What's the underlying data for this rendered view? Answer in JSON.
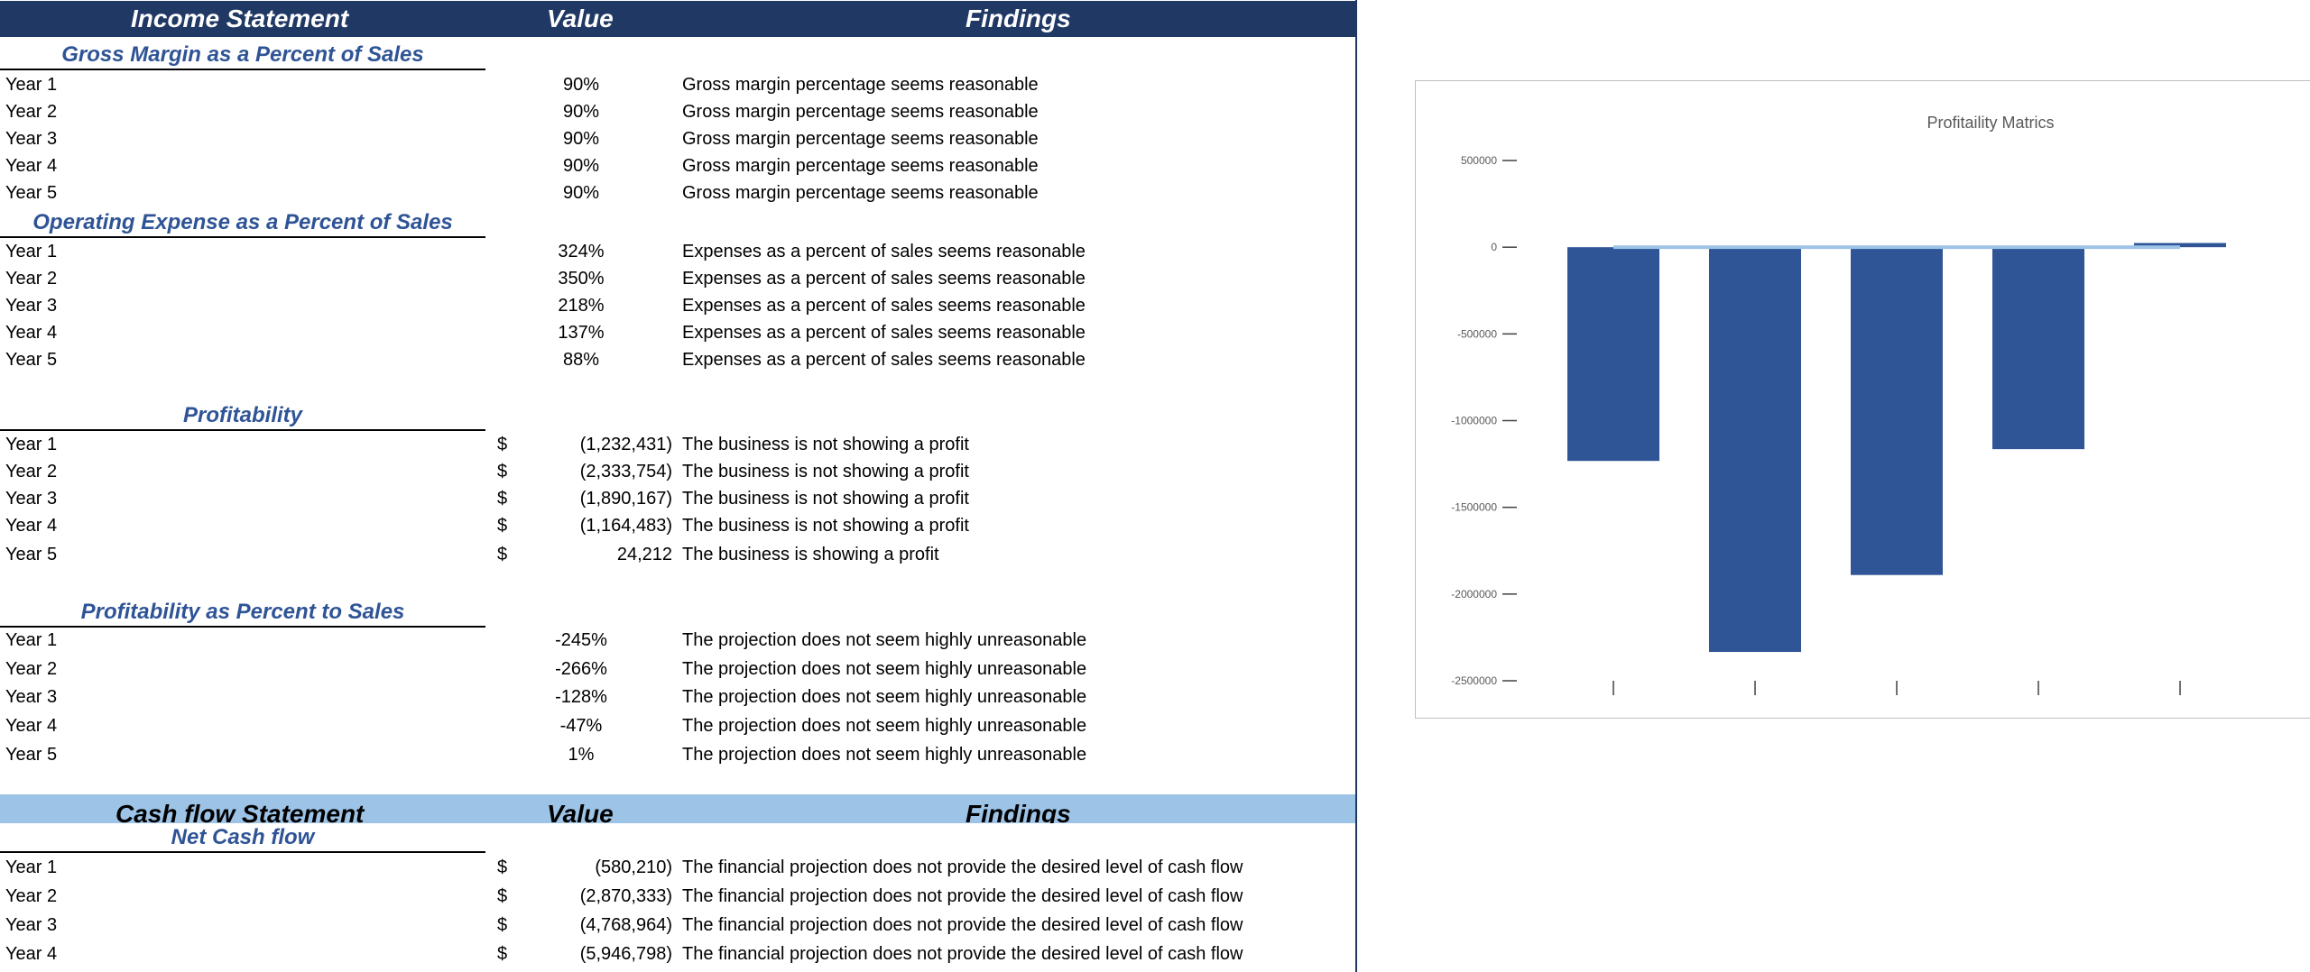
{
  "income_header": {
    "title": "Income Statement",
    "value": "Value",
    "findings": "Findings"
  },
  "sections": {
    "gross_margin": {
      "title": "Gross Margin as a Percent of Sales",
      "rows": [
        {
          "label": "Year 1",
          "value": "90%",
          "finding": "Gross margin percentage seems reasonable"
        },
        {
          "label": "Year 2",
          "value": "90%",
          "finding": "Gross margin percentage seems reasonable"
        },
        {
          "label": "Year 3",
          "value": "90%",
          "finding": "Gross margin percentage seems reasonable"
        },
        {
          "label": "Year 4",
          "value": "90%",
          "finding": "Gross margin percentage seems reasonable"
        },
        {
          "label": "Year 5",
          "value": "90%",
          "finding": "Gross margin percentage seems reasonable"
        }
      ]
    },
    "opex": {
      "title": "Operating Expense as a Percent of Sales",
      "rows": [
        {
          "label": "Year 1",
          "value": "324%",
          "finding": "Expenses as a percent of sales seems reasonable"
        },
        {
          "label": "Year 2",
          "value": "350%",
          "finding": "Expenses as a percent of sales seems reasonable"
        },
        {
          "label": "Year 3",
          "value": "218%",
          "finding": "Expenses as a percent of sales seems reasonable"
        },
        {
          "label": "Year 4",
          "value": "137%",
          "finding": "Expenses as a percent of sales seems reasonable"
        },
        {
          "label": "Year 5",
          "value": "88%",
          "finding": "Expenses as a percent of sales seems reasonable"
        }
      ]
    },
    "profitability": {
      "title": "Profitability",
      "rows": [
        {
          "label": "Year 1",
          "currency": "$",
          "value": "(1,232,431)",
          "finding": "The business is not showing a profit"
        },
        {
          "label": "Year 2",
          "currency": "$",
          "value": "(2,333,754)",
          "finding": "The business is not showing a profit"
        },
        {
          "label": "Year 3",
          "currency": "$",
          "value": "(1,890,167)",
          "finding": "The business is not showing a profit"
        },
        {
          "label": "Year 4",
          "currency": "$",
          "value": "(1,164,483)",
          "finding": "The business is not showing a profit"
        },
        {
          "label": "Year 5",
          "currency": "$",
          "value": "24,212",
          "finding": "The business is showing a profit"
        }
      ]
    },
    "profit_pct": {
      "title": "Profitability as Percent to Sales",
      "rows": [
        {
          "label": "Year 1",
          "value": "-245%",
          "finding": "The projection does not seem highly unreasonable"
        },
        {
          "label": "Year 2",
          "value": "-266%",
          "finding": "The projection does not seem highly unreasonable"
        },
        {
          "label": "Year 3",
          "value": "-128%",
          "finding": "The projection does not seem highly unreasonable"
        },
        {
          "label": "Year 4",
          "value": "-47%",
          "finding": "The projection does not seem highly unreasonable"
        },
        {
          "label": "Year 5",
          "value": "1%",
          "finding": "The projection does not seem highly unreasonable"
        }
      ]
    },
    "net_cash": {
      "title": "Net Cash flow",
      "rows": [
        {
          "label": "Year 1",
          "currency": "$",
          "value": "(580,210)",
          "finding": "The financial projection does not provide the desired level of cash flow"
        },
        {
          "label": "Year 2",
          "currency": "$",
          "value": "(2,870,333)",
          "finding": "The financial projection does not provide the desired level of cash flow"
        },
        {
          "label": "Year 3",
          "currency": "$",
          "value": "(4,768,964)",
          "finding": "The financial projection does not provide the desired level of cash flow"
        },
        {
          "label": "Year 4",
          "currency": "$",
          "value": "(5,946,798)",
          "finding": "The financial projection does not provide the desired level of cash flow"
        }
      ]
    }
  },
  "cashflow_header": {
    "title": "Cash flow Statement",
    "value": "Value",
    "findings": "Findings"
  },
  "colors": {
    "header_dark": "#1f3864",
    "header_light": "#9dc3e6",
    "section_title": "#2f5496",
    "bar": "#2f5597",
    "line": "#9dc3e6"
  },
  "chart_data": {
    "type": "bar",
    "title": "Profitaility Matrics",
    "categories": [
      "",
      "",
      "",
      "",
      ""
    ],
    "series": [
      {
        "values": [
          -1232431,
          -2333754,
          -1890167,
          -1164483,
          24212
        ]
      }
    ],
    "overlay_line": {
      "values": [
        0,
        0,
        0,
        0,
        0
      ]
    },
    "ylim": [
      -2500000,
      500000
    ],
    "yticks": [
      "500000",
      "0",
      "-500000",
      "-1000000",
      "-1500000",
      "-2000000",
      "-2500000"
    ],
    "ytick_values": [
      500000,
      0,
      -500000,
      -1000000,
      -1500000,
      -2000000,
      -2500000
    ],
    "grid": false,
    "legend": "none"
  }
}
